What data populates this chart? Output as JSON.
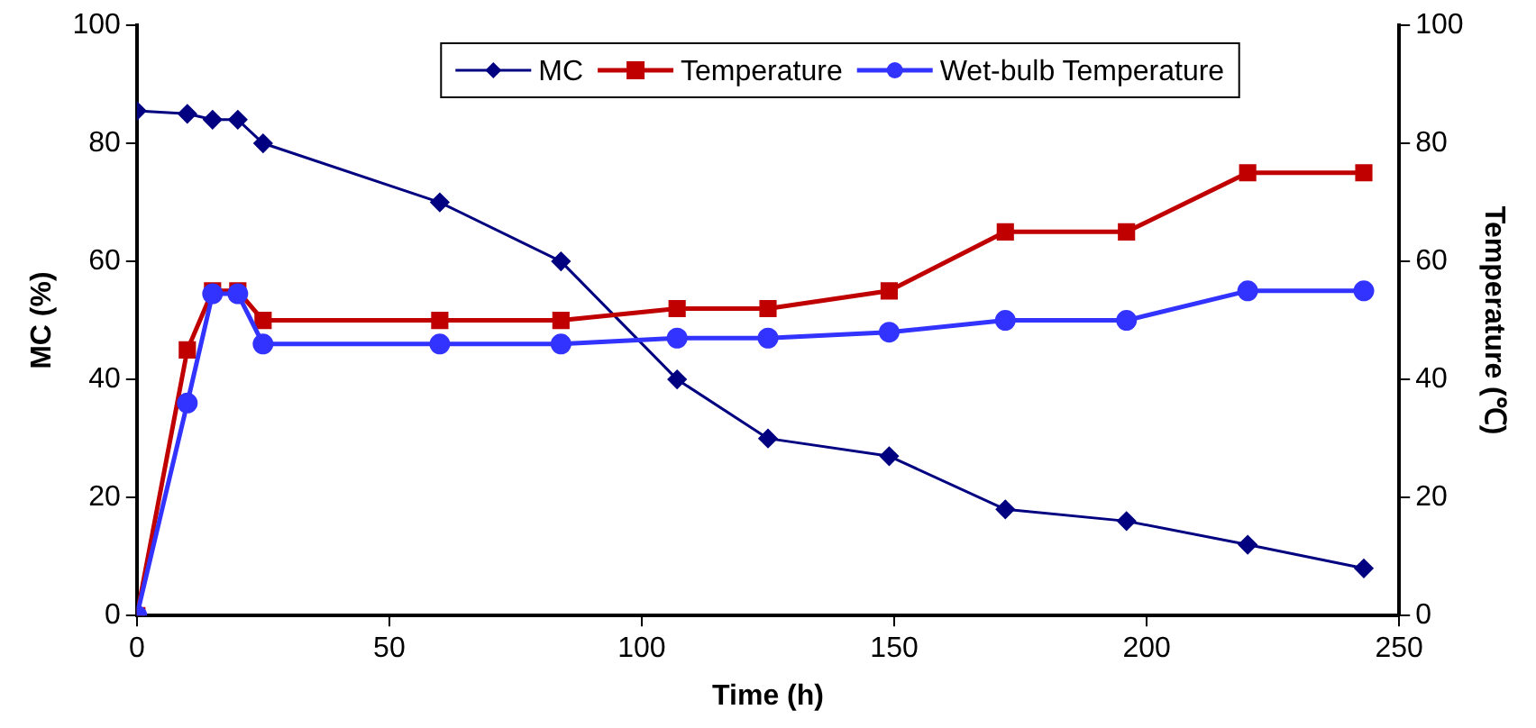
{
  "chart_data": {
    "type": "line",
    "xlabel": "Time (h)",
    "ylabel": "MC (%)",
    "y2label": "Temperature (℃)",
    "x": [
      0,
      10,
      15,
      20,
      25,
      60,
      84,
      107,
      125,
      149,
      172,
      196,
      220,
      243
    ],
    "series": [
      {
        "name": "MC",
        "color": "#000080",
        "marker": "diamond",
        "values": [
          85.5,
          85,
          84,
          84,
          80,
          70,
          60,
          40,
          30,
          27,
          18,
          16,
          12,
          8
        ]
      },
      {
        "name": "Temperature",
        "color": "#c00000",
        "marker": "square",
        "axis": "y2",
        "values": [
          0,
          45,
          55,
          55,
          50,
          50,
          50,
          52,
          52,
          55,
          65,
          65,
          75,
          75
        ]
      },
      {
        "name": "Wet-bulb Temperature",
        "color": "#3333ff",
        "marker": "circle",
        "axis": "y2",
        "values": [
          0,
          36,
          54.5,
          54.5,
          46,
          46,
          46,
          47,
          47,
          48,
          50,
          50,
          55,
          55
        ]
      }
    ],
    "xlim": [
      0,
      250
    ],
    "xticks": [
      0,
      50,
      100,
      150,
      200,
      250
    ],
    "ylim": [
      0,
      100
    ],
    "yticks": [
      0,
      20,
      40,
      60,
      80,
      100
    ],
    "y2lim": [
      0,
      100
    ],
    "y2ticks": [
      0,
      20,
      40,
      60,
      80,
      100
    ],
    "grid": false,
    "legend": "top",
    "line_style": "solid"
  }
}
